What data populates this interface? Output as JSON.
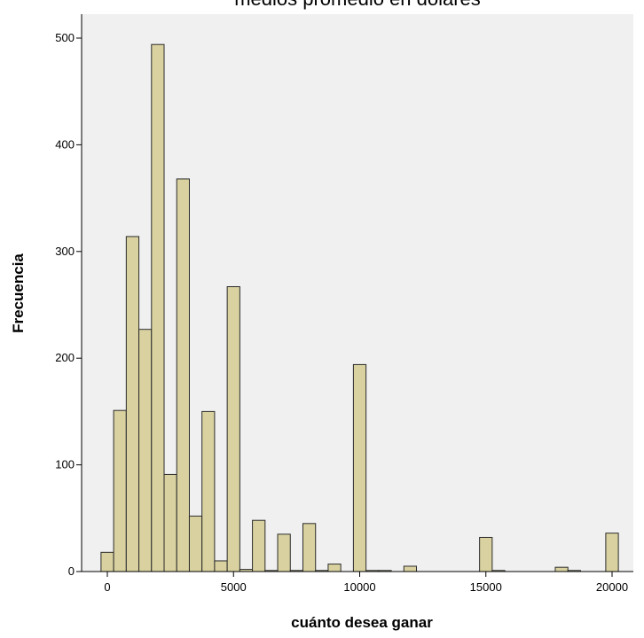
{
  "chart_data": {
    "type": "bar",
    "title": "medios promedio en dolares",
    "xlabel": "cuánto desea ganar",
    "ylabel": "Frecuencia",
    "xlim": [
      -1250,
      21000
    ],
    "ylim": [
      0,
      520
    ],
    "x_ticks": [
      0,
      5000,
      10000,
      15000,
      20000
    ],
    "y_ticks": [
      0,
      100,
      200,
      300,
      400,
      500
    ],
    "bin_width": 500,
    "grid": false,
    "legend": "none",
    "colors": {
      "bar_fill": "#d9d2a0",
      "bar_stroke": "#2b2b2b",
      "plot_bg": "#f0f0f0",
      "axis": "#000000"
    },
    "x": [
      0,
      500,
      1000,
      1500,
      2000,
      2500,
      3000,
      3500,
      4000,
      4500,
      5000,
      5500,
      6000,
      6500,
      7000,
      7500,
      8000,
      8500,
      9000,
      9500,
      10000,
      10500,
      11000,
      11500,
      12000,
      12500,
      13000,
      13500,
      14000,
      14500,
      15000,
      15500,
      16000,
      16500,
      17000,
      17500,
      18000,
      18500,
      19000,
      19500,
      20000
    ],
    "values": [
      18,
      151,
      314,
      227,
      494,
      91,
      368,
      52,
      150,
      10,
      267,
      2,
      48,
      1,
      35,
      1,
      45,
      1,
      7,
      0,
      194,
      1,
      1,
      0,
      5,
      0,
      0,
      0,
      0,
      0,
      32,
      1,
      0,
      0,
      0,
      0,
      4,
      1,
      0,
      0,
      36
    ]
  }
}
